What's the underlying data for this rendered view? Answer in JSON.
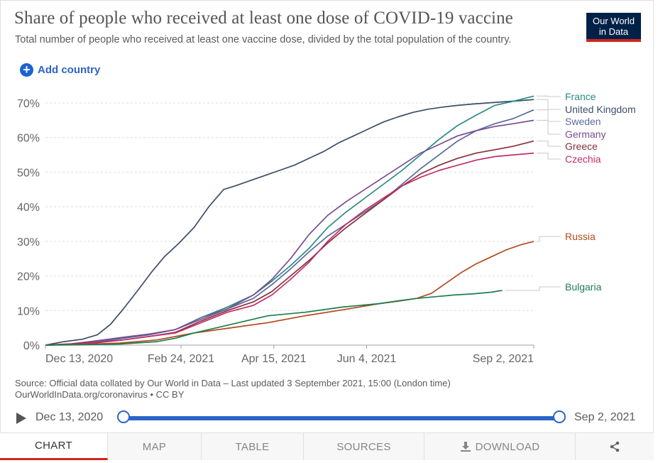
{
  "header": {
    "title": "Share of people who received at least one dose of COVID-19 vaccine",
    "subtitle": "Total number of people who received at least one vaccine dose, divided by the total population of the country.",
    "logo_line1": "Our World",
    "logo_line2": "in Data",
    "add_country_label": "Add country"
  },
  "source": {
    "line1": "Source: Official data collated by Our World in Data – Last updated 3 September 2021, 15:00 (London time)",
    "line2": "OurWorldInData.org/coronavirus • CC BY"
  },
  "timeline": {
    "start_label": "Dec 13, 2020",
    "end_label": "Sep 2, 2021",
    "selected_start_fraction": 0,
    "selected_end_fraction": 1
  },
  "tabs": [
    {
      "label": "CHART",
      "active": true
    },
    {
      "label": "MAP",
      "active": false
    },
    {
      "label": "TABLE",
      "active": false
    },
    {
      "label": "SOURCES",
      "active": false
    },
    {
      "label": "DOWNLOAD",
      "active": false,
      "icon": "download-icon"
    },
    {
      "label": "",
      "active": false,
      "icon": "share-icon"
    }
  ],
  "chart_data": {
    "type": "line",
    "title": "Share of people who received at least one dose of COVID-19 vaccine",
    "xlabel": "",
    "ylabel": "",
    "x_unit": "days since Dec 13, 2020",
    "xlim": [
      0,
      263
    ],
    "ylim": [
      0,
      70
    ],
    "yticks": [
      0,
      10,
      20,
      30,
      40,
      50,
      60,
      70
    ],
    "ytick_labels": [
      "0%",
      "10%",
      "20%",
      "30%",
      "40%",
      "50%",
      "60%",
      "70%"
    ],
    "xticks": [
      0,
      73,
      123,
      173,
      263
    ],
    "xtick_labels": [
      "Dec 13, 2020",
      "Feb 24, 2021",
      "Apr 15, 2021",
      "Jun 4, 2021",
      "Sep 2, 2021"
    ],
    "grid": "horizontal",
    "series": [
      {
        "name": "United Kingdom",
        "color": "#3c4e66",
        "x": [
          0,
          10,
          20,
          28,
          35,
          42,
          50,
          57,
          64,
          72,
          80,
          88,
          96,
          102,
          110,
          118,
          126,
          134,
          142,
          150,
          158,
          166,
          174,
          182,
          190,
          198,
          206,
          214,
          222,
          230,
          238,
          246,
          254,
          263
        ],
        "values": [
          0,
          1,
          1.7,
          3,
          6,
          10.5,
          16,
          21,
          25.5,
          29.5,
          34,
          40,
          45,
          46,
          47.5,
          49,
          50.5,
          52,
          54,
          56,
          58.5,
          60.5,
          62.5,
          64.5,
          66,
          67.3,
          68.2,
          68.8,
          69.3,
          69.7,
          70,
          70.3,
          70.6,
          71
        ]
      },
      {
        "name": "France",
        "color": "#2b8a84",
        "x": [
          0,
          14,
          28,
          42,
          56,
          70,
          84,
          98,
          112,
          122,
          132,
          142,
          152,
          162,
          172,
          182,
          192,
          202,
          212,
          222,
          232,
          242,
          252,
          263
        ],
        "values": [
          0,
          0.3,
          1,
          2,
          3,
          4.5,
          8,
          11,
          14.5,
          18.5,
          23,
          28,
          34,
          38.5,
          42.5,
          46.5,
          50.5,
          55,
          59.5,
          63.5,
          66.5,
          69.3,
          70.5,
          72
        ]
      },
      {
        "name": "Sweden",
        "color": "#5a6a9c",
        "x": [
          0,
          14,
          28,
          42,
          56,
          70,
          84,
          98,
          112,
          122,
          132,
          142,
          152,
          162,
          172,
          182,
          192,
          202,
          212,
          222,
          232,
          242,
          252,
          263
        ],
        "values": [
          0,
          0.3,
          1,
          2,
          3,
          4.5,
          8,
          10.5,
          13.5,
          17.5,
          22,
          27,
          31.5,
          35,
          38.5,
          42,
          46.5,
          51,
          55,
          59,
          62,
          64,
          65.5,
          68
        ]
      },
      {
        "name": "Germany",
        "color": "#7a4d91",
        "x": [
          0,
          14,
          28,
          42,
          56,
          70,
          84,
          98,
          112,
          122,
          132,
          142,
          152,
          162,
          172,
          182,
          192,
          202,
          212,
          222,
          232,
          242,
          252,
          263
        ],
        "values": [
          0,
          0.4,
          1.3,
          2.3,
          3.2,
          4.5,
          7.5,
          10.5,
          14.5,
          19,
          25,
          32,
          37.5,
          41.5,
          45,
          48.5,
          52,
          55.5,
          58,
          60.5,
          62,
          63.2,
          64,
          65
        ]
      },
      {
        "name": "Greece",
        "color": "#883039",
        "x": [
          0,
          14,
          28,
          42,
          56,
          70,
          84,
          98,
          112,
          122,
          132,
          142,
          152,
          162,
          172,
          182,
          192,
          202,
          212,
          222,
          232,
          242,
          252,
          263
        ],
        "values": [
          0,
          0.3,
          0.8,
          1.5,
          2.5,
          3.7,
          7,
          10,
          12.5,
          15.5,
          20,
          24.5,
          29.5,
          34,
          38,
          42,
          46,
          49.5,
          52,
          54,
          55.5,
          56.5,
          57.5,
          59
        ]
      },
      {
        "name": "Czechia",
        "color": "#c42d69",
        "x": [
          0,
          14,
          28,
          42,
          56,
          70,
          84,
          98,
          112,
          122,
          132,
          142,
          152,
          162,
          172,
          182,
          192,
          202,
          212,
          222,
          232,
          242,
          252,
          263
        ],
        "values": [
          0,
          0.2,
          0.7,
          1.5,
          2.5,
          3.5,
          6.5,
          9.5,
          11.5,
          14.5,
          19,
          24,
          30,
          35,
          39,
          42.5,
          46,
          48.5,
          50.5,
          52,
          53.5,
          54.5,
          55,
          55.5
        ]
      },
      {
        "name": "Russia",
        "color": "#b24a1c",
        "x": [
          0,
          20,
          40,
          60,
          80,
          100,
          120,
          140,
          160,
          180,
          190,
          200,
          208,
          216,
          224,
          232,
          240,
          248,
          256,
          263
        ],
        "values": [
          0,
          0.2,
          0.6,
          1.5,
          3.5,
          5,
          6.5,
          8.5,
          10.2,
          12,
          12.7,
          13.5,
          15,
          18,
          21,
          23.5,
          25.5,
          27.5,
          29,
          30
        ]
      },
      {
        "name": "Bulgaria",
        "color": "#1d7d4e",
        "x": [
          0,
          20,
          40,
          60,
          70,
          80,
          100,
          120,
          140,
          160,
          180,
          190,
          200,
          210,
          220,
          230,
          240,
          246
        ],
        "values": [
          0,
          0.1,
          0.3,
          1,
          2,
          3.5,
          6,
          8.5,
          9.5,
          11,
          12,
          12.8,
          13.5,
          14,
          14.5,
          14.8,
          15.3,
          15.8
        ]
      }
    ],
    "legend": {
      "position": "right",
      "entries": [
        {
          "name": "France",
          "color": "#2b8a84"
        },
        {
          "name": "United Kingdom",
          "color": "#3c4e66"
        },
        {
          "name": "Sweden",
          "color": "#5a6a9c"
        },
        {
          "name": "Germany",
          "color": "#7a4d91"
        },
        {
          "name": "Greece",
          "color": "#883039"
        },
        {
          "name": "Czechia",
          "color": "#c42d69"
        },
        {
          "name": "Russia",
          "color": "#b24a1c"
        },
        {
          "name": "Bulgaria",
          "color": "#1d7d4e"
        }
      ]
    }
  }
}
